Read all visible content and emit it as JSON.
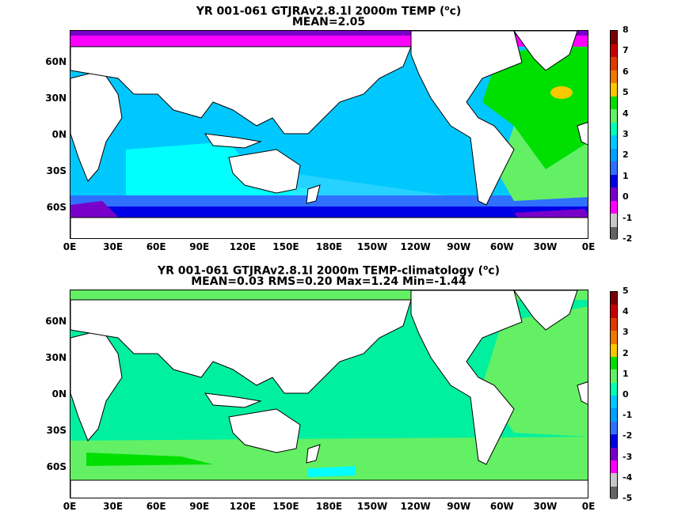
{
  "panels": [
    {
      "title_line1_prefix": "YR 001-061 GTJRAv2.8.1l 2000m TEMP (",
      "title_line1_sup": "o",
      "title_line1_suffix": "c)",
      "title_line2": "MEAN=2.05",
      "colorbar_ticks": [
        "8",
        "7",
        "6",
        "5",
        "4",
        "3",
        "2",
        "1",
        "0",
        "-1",
        "-2"
      ],
      "colorbar_colors": [
        "#7a0000",
        "#c80000",
        "#e03c00",
        "#f07800",
        "#f8c800",
        "#00e000",
        "#64f064",
        "#00ffb4",
        "#00c8ff",
        "#00a0ff",
        "#3070ff",
        "#0000e6",
        "#7800c8",
        "#ff00ff",
        "#c8c8c8",
        "#646464"
      ]
    },
    {
      "title_line1_prefix": "YR 001-061 GTJRAv2.8.1l 2000m TEMP-climatology (",
      "title_line1_sup": "o",
      "title_line1_suffix": "c)",
      "title_line2": "MEAN=0.03   RMS=0.20   Max=1.24   Min=-1.44",
      "colorbar_ticks": [
        "5",
        "4",
        "3",
        "2",
        "1",
        "0",
        "-1",
        "-2",
        "-3",
        "-4",
        "-5"
      ],
      "colorbar_colors": [
        "#7a0000",
        "#c80000",
        "#e03c00",
        "#f07800",
        "#f8c800",
        "#00e000",
        "#64f064",
        "#00ffb4",
        "#00c8ff",
        "#00a0ff",
        "#3070ff",
        "#0000e6",
        "#7800c8",
        "#ff00ff",
        "#c8c8c8",
        "#646464"
      ]
    }
  ],
  "lat_labels": [
    "60N",
    "30N",
    "0N",
    "30S",
    "60S"
  ],
  "lon_labels": [
    "0E",
    "30E",
    "60E",
    "90E",
    "120E",
    "150E",
    "180E",
    "150W",
    "120W",
    "90W",
    "60W",
    "30W",
    "0E"
  ]
}
